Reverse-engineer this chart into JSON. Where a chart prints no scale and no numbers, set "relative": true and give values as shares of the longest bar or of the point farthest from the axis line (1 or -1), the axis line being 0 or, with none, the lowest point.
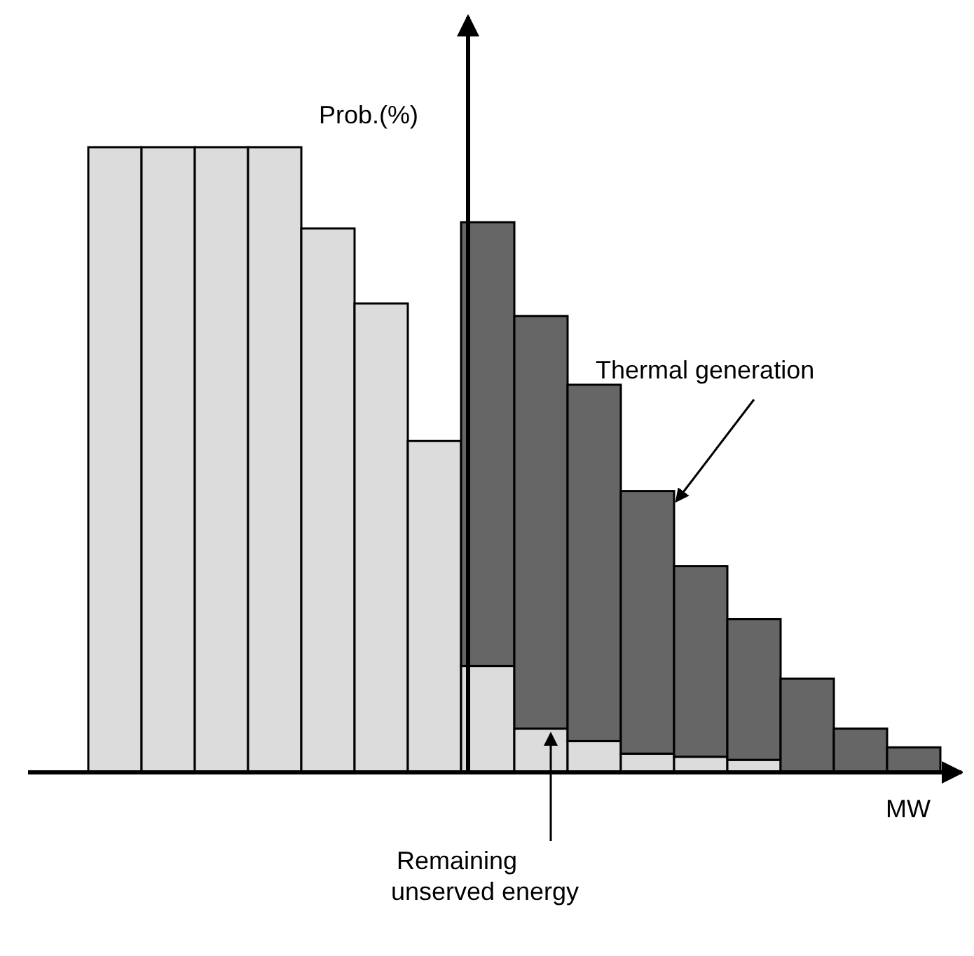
{
  "chart_data": {
    "type": "bar",
    "stacked": true,
    "relative": true,
    "xlabel": "MW",
    "ylabel": "Prob.(%)",
    "categories": [
      null,
      null,
      null,
      null,
      null,
      null,
      null,
      null,
      null,
      null,
      null,
      null,
      null,
      null,
      null,
      null
    ],
    "series": [
      {
        "name": "Remaining unserved energy",
        "color": "#dcdcdc",
        "values": [
          1,
          1,
          1,
          1,
          0.87,
          0.75,
          0.53,
          0.17,
          0.07,
          0.05,
          0.03,
          0.025,
          0.02,
          null,
          null,
          null
        ]
      },
      {
        "name": "Thermal generation",
        "color": "#666666",
        "values": [
          null,
          null,
          null,
          null,
          null,
          null,
          null,
          0.71,
          0.66,
          0.57,
          0.42,
          0.305,
          0.225,
          0.15,
          0.07,
          0.04
        ]
      }
    ]
  }
}
